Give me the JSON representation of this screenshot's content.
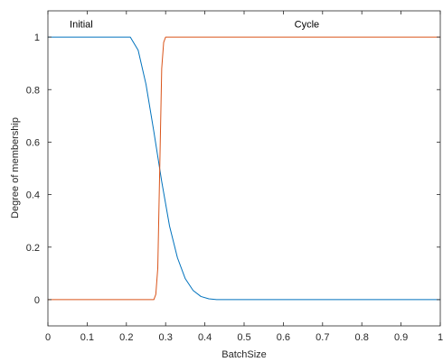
{
  "chart_data": {
    "type": "line",
    "xlabel": "BatchSize",
    "ylabel": "Degree of membership",
    "xlim": [
      0,
      1
    ],
    "ylim": [
      -0.1,
      1.1
    ],
    "xticks": [
      0,
      0.1,
      0.2,
      0.3,
      0.4,
      0.5,
      0.6,
      0.7,
      0.8,
      0.9,
      1
    ],
    "xtick_labels": [
      "0",
      "0.1",
      "0.2",
      "0.3",
      "0.4",
      "0.5",
      "0.6",
      "0.7",
      "0.8",
      "0.9",
      "1"
    ],
    "yticks": [
      0,
      0.2,
      0.4,
      0.6,
      0.8,
      1
    ],
    "ytick_labels": [
      "0",
      "0.2",
      "0.4",
      "0.6",
      "0.8",
      "1"
    ],
    "grid": false,
    "series": [
      {
        "name": "Initial",
        "color": "#0072BD",
        "shape": "z-shaped",
        "points": [
          [
            0,
            1
          ],
          [
            0.21,
            1
          ],
          [
            0.23,
            0.95
          ],
          [
            0.25,
            0.82
          ],
          [
            0.27,
            0.64
          ],
          [
            0.29,
            0.45
          ],
          [
            0.31,
            0.28
          ],
          [
            0.33,
            0.16
          ],
          [
            0.35,
            0.08
          ],
          [
            0.37,
            0.035
          ],
          [
            0.39,
            0.012
          ],
          [
            0.41,
            0.003
          ],
          [
            0.43,
            0
          ],
          [
            0.45,
            0
          ],
          [
            1,
            0
          ]
        ]
      },
      {
        "name": "Cycle",
        "color": "#D95319",
        "shape": "s-shaped",
        "points": [
          [
            0,
            0
          ],
          [
            0.27,
            0
          ],
          [
            0.275,
            0.02
          ],
          [
            0.28,
            0.12
          ],
          [
            0.285,
            0.5
          ],
          [
            0.29,
            0.88
          ],
          [
            0.295,
            0.98
          ],
          [
            0.3,
            1
          ],
          [
            1,
            1
          ]
        ]
      }
    ],
    "annotations": [
      {
        "text": "Initial",
        "x": 0.085,
        "y": 1.05
      },
      {
        "text": "Cycle",
        "x": 0.66,
        "y": 1.05
      }
    ]
  }
}
